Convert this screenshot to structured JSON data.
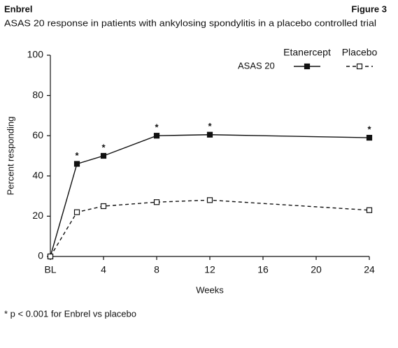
{
  "chart_data": {
    "type": "line",
    "header": "Enbrel",
    "figure_label": "Figure 3",
    "title": "ASAS 20 response in patients with ankylosing spondylitis in a placebo controlled trial",
    "legend_title": "ASAS 20",
    "x": [
      0,
      2,
      4,
      8,
      12,
      24
    ],
    "series": [
      {
        "name": "Etanercept",
        "color": "#111111",
        "dash": false,
        "marker": "filled",
        "values": [
          0,
          46,
          50,
          60,
          60.5,
          59
        ]
      },
      {
        "name": "Placebo",
        "color": "#111111",
        "dash": true,
        "marker": "open",
        "values": [
          0,
          22,
          25,
          27,
          28,
          23
        ]
      }
    ],
    "annotations": [
      {
        "x": 2,
        "text": "*"
      },
      {
        "x": 4,
        "text": "*"
      },
      {
        "x": 8,
        "text": "*"
      },
      {
        "x": 12,
        "text": "*"
      },
      {
        "x": 24,
        "text": "*"
      }
    ],
    "xlim": [
      0,
      24
    ],
    "xticks": [
      {
        "value": 0,
        "label": "BL"
      },
      4,
      8,
      12,
      16,
      20,
      24
    ],
    "ylim": [
      0,
      100
    ],
    "yticks": [
      0,
      20,
      40,
      60,
      80,
      100
    ],
    "xlabel": "Weeks",
    "ylabel": "Percent responding",
    "grid": false,
    "legend_position": "top-right",
    "footnote": "* p < 0.001 for Enbrel vs placebo"
  }
}
